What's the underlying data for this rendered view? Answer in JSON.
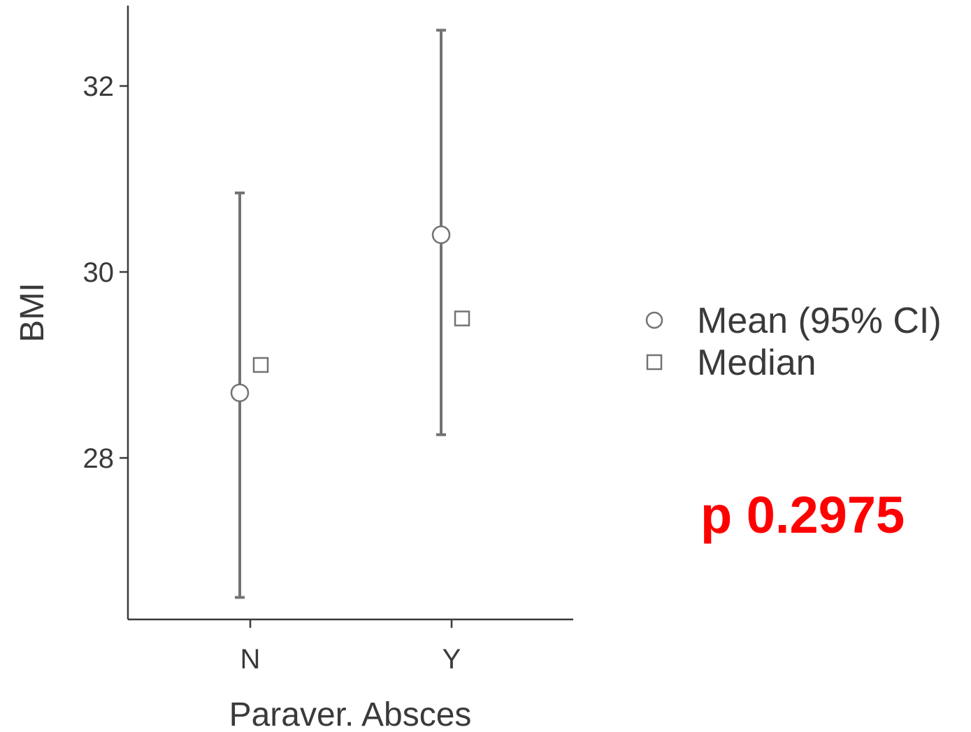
{
  "chart_data": {
    "type": "scatter",
    "categories": [
      "N",
      "Y"
    ],
    "xlabel": "Paraver. Absces",
    "ylabel": "BMI",
    "ylim": [
      26.25,
      32.9
    ],
    "yticks": [
      28,
      30,
      32
    ],
    "series": [
      {
        "name": "Mean (95% CI)",
        "marker": "circle",
        "values": [
          28.7,
          30.4
        ],
        "ci_lower": [
          26.5,
          28.25
        ],
        "ci_upper": [
          30.85,
          32.6
        ]
      },
      {
        "name": "Median",
        "marker": "square",
        "values": [
          29.0,
          29.5
        ]
      }
    ],
    "legend_position": "right",
    "grid": false,
    "annotation": "p 0.2975",
    "annotation_color": "#ff0000",
    "line_color": "#737373",
    "axis_color": "#3a3a3a"
  }
}
